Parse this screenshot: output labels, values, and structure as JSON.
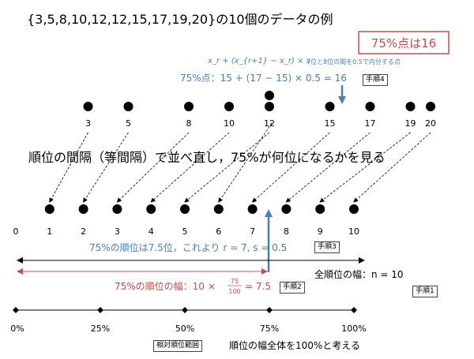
{
  "title": "{3,5,8,10,12,12,15,17,19,20}の10個のデータの例",
  "result_box": "75%点は16",
  "formula_top": "x_r + (x_{r+1} − x_r) × s",
  "formula_note": "7位と8位の間を0.5で内分する点",
  "step4_line": "75%点：15 + (17 − 15) × 0.5 = 16",
  "step4_tag": "手順4",
  "data_values": [
    "3",
    "5",
    "8",
    "10",
    "12",
    "12",
    "15",
    "17",
    "19",
    "20"
  ],
  "instruction": "順位の間隔（等間隔）で並べ直し，75%が何位になるかを見る",
  "rank_labels": [
    "0",
    "1",
    "2",
    "3",
    "4",
    "5",
    "6",
    "7",
    "8",
    "9",
    "10"
  ],
  "step3_line": "75%の順位は7.5位，これより r = 7,  s = 0.5",
  "step3_tag": "手順3",
  "total_width": "全順位の幅：n = 10",
  "step1_tag": "手順1",
  "width75_prefix": "75%の順位の幅：10 ×",
  "width75_num": "75",
  "width75_den": "100",
  "width75_suffix": "= 7.5",
  "step2_tag": "手順2",
  "percent_labels": [
    "0%",
    "25%",
    "50%",
    "75%",
    "100%"
  ],
  "relative_rank_label": "相対順位範囲",
  "total_note": "順位の幅全体を100%と考える",
  "colors": {
    "blue": "#4a7ebb",
    "red": "#c0504d",
    "black": "#000000"
  }
}
